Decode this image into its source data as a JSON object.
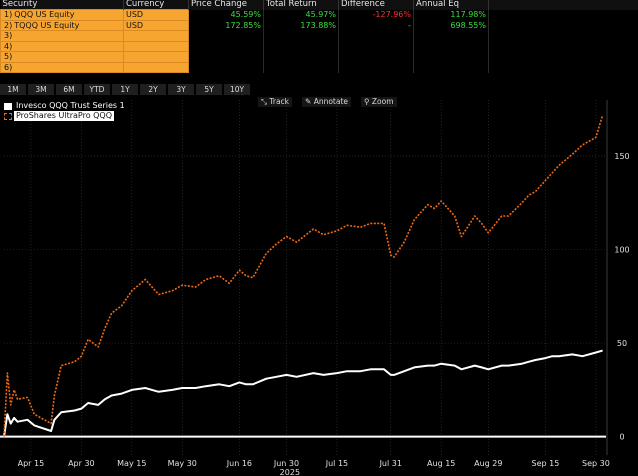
{
  "table": {
    "headers": [
      "Security",
      "Currency",
      "Price Change",
      "Total Return",
      "Difference",
      "Annual Eq"
    ],
    "rows": [
      {
        "num": "1)",
        "security": "QQQ US Equity",
        "currency": "USD",
        "price_change": "45.59%",
        "total_return": "45.97%",
        "difference": "-127.96%",
        "annual_eq": "117.98%"
      },
      {
        "num": "2)",
        "security": "TQQQ US Equity",
        "currency": "USD",
        "price_change": "172.85%",
        "total_return": "173.88%",
        "difference": "-",
        "annual_eq": "698.55%"
      },
      {
        "num": "3)",
        "security": "",
        "currency": "",
        "price_change": "",
        "total_return": "",
        "difference": "",
        "annual_eq": ""
      },
      {
        "num": "4)",
        "security": "",
        "currency": "",
        "price_change": "",
        "total_return": "",
        "difference": "",
        "annual_eq": ""
      },
      {
        "num": "5)",
        "security": "",
        "currency": "",
        "price_change": "",
        "total_return": "",
        "difference": "",
        "annual_eq": ""
      },
      {
        "num": "6)",
        "security": "",
        "currency": "",
        "price_change": "",
        "total_return": "",
        "difference": "",
        "annual_eq": ""
      }
    ]
  },
  "range_tabs": [
    "1M",
    "3M",
    "6M",
    "YTD",
    "1Y",
    "2Y",
    "3Y",
    "5Y",
    "10Y"
  ],
  "tools": [
    "Track",
    "Annotate",
    "Zoom"
  ],
  "colors": {
    "qqq": "#ffffff",
    "tqqq": "#f26a10",
    "background": "#000000",
    "zero_line": "#ffffff",
    "positive": "#37e03d",
    "negative": "#ff3030",
    "header_fill": "#f7a531"
  },
  "chart_data": {
    "type": "line",
    "x_tick_labels": [
      "Apr 15",
      "Apr 30",
      "May 15",
      "May 30",
      "Jun 16",
      "Jun 30",
      "Jul 15",
      "Jul 31",
      "Aug 15",
      "Aug 29",
      "Sep 15",
      "Sep 30"
    ],
    "x_year_label": "2025",
    "y_ticks": [
      0,
      50,
      100,
      150
    ],
    "ylim": [
      -5,
      180
    ],
    "grid": true,
    "legend_position": "top-left",
    "x_dates": [
      "2025-04-07",
      "2025-04-08",
      "2025-04-09",
      "2025-04-10",
      "2025-04-11",
      "2025-04-14",
      "2025-04-16",
      "2025-04-21",
      "2025-04-22",
      "2025-04-24",
      "2025-04-28",
      "2025-04-30",
      "2025-05-02",
      "2025-05-05",
      "2025-05-07",
      "2025-05-09",
      "2025-05-12",
      "2025-05-15",
      "2025-05-19",
      "2025-05-21",
      "2025-05-23",
      "2025-05-27",
      "2025-05-30",
      "2025-06-03",
      "2025-06-06",
      "2025-06-10",
      "2025-06-13",
      "2025-06-16",
      "2025-06-18",
      "2025-06-20",
      "2025-06-24",
      "2025-06-27",
      "2025-06-30",
      "2025-07-03",
      "2025-07-08",
      "2025-07-11",
      "2025-07-15",
      "2025-07-18",
      "2025-07-22",
      "2025-07-25",
      "2025-07-29",
      "2025-07-31",
      "2025-08-01",
      "2025-08-04",
      "2025-08-07",
      "2025-08-11",
      "2025-08-13",
      "2025-08-15",
      "2025-08-19",
      "2025-08-21",
      "2025-08-25",
      "2025-08-27",
      "2025-08-29",
      "2025-09-02",
      "2025-09-04",
      "2025-09-08",
      "2025-09-10",
      "2025-09-12",
      "2025-09-15",
      "2025-09-17",
      "2025-09-19",
      "2025-09-23",
      "2025-09-26",
      "2025-09-30",
      "2025-10-02"
    ],
    "series": [
      {
        "name": "Invesco QQQ Trust Series 1",
        "color": "#ffffff",
        "values": [
          0,
          12,
          7,
          10,
          8,
          9,
          6,
          3,
          9,
          13,
          14,
          15,
          18,
          17,
          20,
          22,
          23,
          25,
          26,
          25,
          24,
          25,
          26,
          26,
          27,
          28,
          27,
          29,
          28,
          28,
          31,
          32,
          33,
          32,
          34,
          33,
          34,
          35,
          35,
          36,
          36,
          33,
          33,
          35,
          37,
          38,
          38,
          39,
          38,
          36,
          38,
          37,
          36,
          38,
          38,
          39,
          40,
          41,
          42,
          43,
          43,
          44,
          43,
          45,
          46
        ]
      },
      {
        "name": "ProShares UltraPro QQQ",
        "color": "#f26a10",
        "values": [
          0,
          34,
          17,
          25,
          20,
          21,
          12,
          7,
          22,
          38,
          40,
          43,
          52,
          48,
          58,
          66,
          70,
          78,
          84,
          80,
          76,
          78,
          81,
          80,
          84,
          86,
          82,
          89,
          86,
          85,
          98,
          103,
          107,
          104,
          111,
          108,
          110,
          113,
          112,
          114,
          114,
          97,
          96,
          104,
          116,
          124,
          122,
          126,
          118,
          107,
          118,
          114,
          109,
          118,
          118,
          125,
          129,
          131,
          137,
          141,
          145,
          151,
          156,
          160,
          172
        ]
      }
    ]
  }
}
